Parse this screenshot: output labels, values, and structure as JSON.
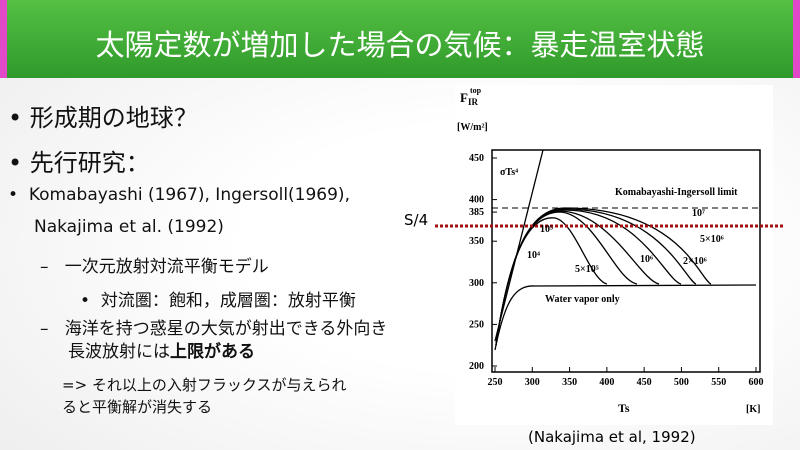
{
  "header": {
    "title": "太陽定数が増加した場合の気候：暴走温室状態"
  },
  "bullets": {
    "b1": "形成期の地球？",
    "b2": "先行研究：",
    "b3": "Komabayashi (1967), Ingersoll(1969),",
    "b3b": "Nakajima et al. (1992)",
    "b4": "一次元放射対流平衡モデル",
    "b5": "対流圏：飽和，成層圏：放射平衡",
    "b6": "海洋を持つ惑星の大気が射出できる外向き",
    "b6b": "長波放射には",
    "b6c": "上限がある",
    "b7": "=> それ以上の入射フラックスが与えられ",
    "b7b": "ると平衡解が消失する"
  },
  "figure": {
    "ylabel": "F",
    "ylabel_sub": "IR",
    "ylabel_sup": "top",
    "yunit": "[W/m²]",
    "xlabel": "Ts",
    "xunit": "[K]",
    "xlim": [
      250,
      600
    ],
    "ylim": [
      200,
      450
    ],
    "xticks": [
      250,
      300,
      350,
      400,
      450,
      500,
      550,
      600
    ],
    "yticks": [
      200,
      250,
      300,
      350,
      385,
      400,
      450
    ],
    "limit_label": "Komabayashi-Ingersoll limit",
    "base_label": "Water vapor only",
    "stefan_label": "σTs⁴",
    "curve_labels": [
      "10⁷",
      "5×10⁶",
      "2×10⁶",
      "10⁶",
      "5×10⁵",
      "10⁴",
      "10⁵"
    ],
    "s4_label": "S/4",
    "caption": "(Nakajima et al, 1992)"
  }
}
